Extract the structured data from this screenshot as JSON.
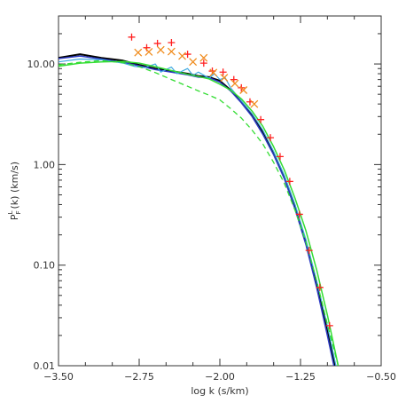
{
  "chart_data": {
    "type": "line",
    "xlabel": "log k (s/km)",
    "ylabel": "P_F^L(k) (km/s)",
    "xlim": [
      -3.5,
      -0.5
    ],
    "ylim": [
      0.01,
      30
    ],
    "y_scale": "log",
    "grid": false,
    "x_ticks": [
      {
        "value": -3.5,
        "label": "−3.50"
      },
      {
        "value": -2.75,
        "label": "−2.75"
      },
      {
        "value": -2.0,
        "label": "−2.00"
      },
      {
        "value": -1.25,
        "label": "−1.25"
      },
      {
        "value": -0.5,
        "label": "−0.50"
      }
    ],
    "y_ticks": [
      {
        "value": 10,
        "label": "10.00"
      },
      {
        "value": 1,
        "label": "1.00"
      },
      {
        "value": 0.1,
        "label": "0.10"
      },
      {
        "value": 0.01,
        "label": "0.01"
      }
    ],
    "series": [
      {
        "color": "#000000",
        "style": "solid",
        "width": 2,
        "points": [
          [
            -3.5,
            11.5
          ],
          [
            -3.3,
            12.5
          ],
          [
            -3.1,
            11.5
          ],
          [
            -2.9,
            10.8
          ],
          [
            -2.75,
            9.8
          ],
          [
            -2.6,
            9.0
          ],
          [
            -2.45,
            8.5
          ],
          [
            -2.3,
            8.0
          ],
          [
            -2.2,
            7.6
          ],
          [
            -2.1,
            7.4
          ],
          [
            -2.0,
            6.8
          ],
          [
            -1.9,
            5.5
          ],
          [
            -1.8,
            4.2
          ],
          [
            -1.7,
            3.1
          ],
          [
            -1.6,
            2.1
          ],
          [
            -1.5,
            1.3
          ],
          [
            -1.4,
            0.75
          ],
          [
            -1.3,
            0.38
          ],
          [
            -1.2,
            0.17
          ],
          [
            -1.1,
            0.065
          ],
          [
            -1.0,
            0.022
          ],
          [
            -0.93,
            0.01
          ]
        ]
      },
      {
        "color": "#2d3cc4",
        "style": "solid",
        "width": 1.5,
        "points": [
          [
            -3.5,
            11.3
          ],
          [
            -3.3,
            12.0
          ],
          [
            -3.1,
            11.2
          ],
          [
            -2.9,
            10.4
          ],
          [
            -2.75,
            9.6
          ],
          [
            -2.6,
            8.8
          ],
          [
            -2.45,
            8.3
          ],
          [
            -2.3,
            7.8
          ],
          [
            -2.2,
            7.4
          ],
          [
            -2.1,
            7.3
          ],
          [
            -2.0,
            6.6
          ],
          [
            -1.9,
            5.4
          ],
          [
            -1.8,
            4.1
          ],
          [
            -1.7,
            3.0
          ],
          [
            -1.6,
            2.0
          ],
          [
            -1.5,
            1.25
          ],
          [
            -1.4,
            0.72
          ],
          [
            -1.3,
            0.36
          ],
          [
            -1.2,
            0.16
          ],
          [
            -1.1,
            0.06
          ],
          [
            -1.0,
            0.02
          ],
          [
            -0.94,
            0.01
          ]
        ]
      },
      {
        "color": "#3fa9e0",
        "style": "solid",
        "width": 1.2,
        "points": [
          [
            -3.5,
            10.5
          ],
          [
            -3.3,
            11.2
          ],
          [
            -3.1,
            11.0
          ],
          [
            -2.9,
            10.2
          ],
          [
            -2.8,
            9.5
          ],
          [
            -2.7,
            9.2
          ],
          [
            -2.6,
            10.0
          ],
          [
            -2.55,
            8.3
          ],
          [
            -2.45,
            9.3
          ],
          [
            -2.4,
            8.0
          ],
          [
            -2.3,
            9.0
          ],
          [
            -2.25,
            7.7
          ],
          [
            -2.2,
            8.3
          ],
          [
            -2.1,
            7.2
          ],
          [
            -2.05,
            8.0
          ],
          [
            -2.0,
            7.0
          ],
          [
            -1.95,
            7.3
          ],
          [
            -1.9,
            5.8
          ],
          [
            -1.8,
            4.3
          ],
          [
            -1.7,
            3.2
          ],
          [
            -1.6,
            2.2
          ],
          [
            -1.5,
            1.35
          ],
          [
            -1.4,
            0.78
          ],
          [
            -1.3,
            0.4
          ],
          [
            -1.2,
            0.18
          ],
          [
            -1.1,
            0.07
          ],
          [
            -1.0,
            0.025
          ],
          [
            -0.92,
            0.01
          ]
        ]
      },
      {
        "color": "#33dd33",
        "style": "solid",
        "width": 1.5,
        "points": [
          [
            -3.5,
            9.5
          ],
          [
            -3.3,
            10.2
          ],
          [
            -3.1,
            10.5
          ],
          [
            -2.9,
            10.6
          ],
          [
            -2.75,
            10.2
          ],
          [
            -2.6,
            9.4
          ],
          [
            -2.45,
            8.6
          ],
          [
            -2.3,
            7.9
          ],
          [
            -2.2,
            7.5
          ],
          [
            -2.1,
            7.1
          ],
          [
            -2.0,
            6.3
          ],
          [
            -1.9,
            5.5
          ],
          [
            -1.8,
            4.5
          ],
          [
            -1.7,
            3.4
          ],
          [
            -1.6,
            2.4
          ],
          [
            -1.5,
            1.5
          ],
          [
            -1.4,
            0.88
          ],
          [
            -1.3,
            0.46
          ],
          [
            -1.2,
            0.22
          ],
          [
            -1.1,
            0.09
          ],
          [
            -1.0,
            0.032
          ],
          [
            -0.9,
            0.01
          ]
        ]
      },
      {
        "color": "#33dd33",
        "style": "dashed",
        "width": 1.3,
        "points": [
          [
            -3.5,
            9.8
          ],
          [
            -3.3,
            10.4
          ],
          [
            -3.1,
            10.8
          ],
          [
            -2.9,
            10.3
          ],
          [
            -2.75,
            9.4
          ],
          [
            -2.6,
            8.2
          ],
          [
            -2.45,
            7.0
          ],
          [
            -2.3,
            6.0
          ],
          [
            -2.2,
            5.4
          ],
          [
            -2.1,
            4.9
          ],
          [
            -2.0,
            4.4
          ],
          [
            -1.9,
            3.6
          ],
          [
            -1.8,
            2.9
          ],
          [
            -1.7,
            2.2
          ],
          [
            -1.6,
            1.6
          ],
          [
            -1.5,
            1.05
          ],
          [
            -1.4,
            0.65
          ],
          [
            -1.3,
            0.35
          ],
          [
            -1.2,
            0.17
          ],
          [
            -1.1,
            0.07
          ],
          [
            -1.0,
            0.026
          ],
          [
            -0.9,
            0.01
          ]
        ]
      }
    ],
    "markers": [
      {
        "symbol": "plus",
        "color": "#ff2020",
        "points": [
          [
            -2.82,
            18.5
          ],
          [
            -2.68,
            14.5
          ],
          [
            -2.58,
            16.0
          ],
          [
            -2.45,
            16.3
          ],
          [
            -2.3,
            12.5
          ],
          [
            -2.15,
            10.2
          ],
          [
            -2.07,
            8.5
          ],
          [
            -1.97,
            8.3
          ],
          [
            -1.87,
            7.0
          ],
          [
            -1.8,
            5.8
          ],
          [
            -1.72,
            4.2
          ],
          [
            -1.62,
            2.8
          ],
          [
            -1.53,
            1.85
          ],
          [
            -1.44,
            1.2
          ],
          [
            -1.35,
            0.68
          ],
          [
            -1.26,
            0.32
          ],
          [
            -1.17,
            0.14
          ],
          [
            -1.07,
            0.06
          ],
          [
            -0.98,
            0.025
          ]
        ]
      },
      {
        "symbol": "x",
        "color": "#f08c1e",
        "points": [
          [
            -2.76,
            13.0
          ],
          [
            -2.66,
            13.2
          ],
          [
            -2.55,
            13.8
          ],
          [
            -2.45,
            13.3
          ],
          [
            -2.35,
            12.0
          ],
          [
            -2.25,
            10.5
          ],
          [
            -2.15,
            11.5
          ],
          [
            -2.06,
            8.2
          ],
          [
            -1.96,
            7.3
          ],
          [
            -1.86,
            6.4
          ],
          [
            -1.78,
            5.5
          ],
          [
            -1.68,
            4.0
          ]
        ]
      }
    ]
  }
}
